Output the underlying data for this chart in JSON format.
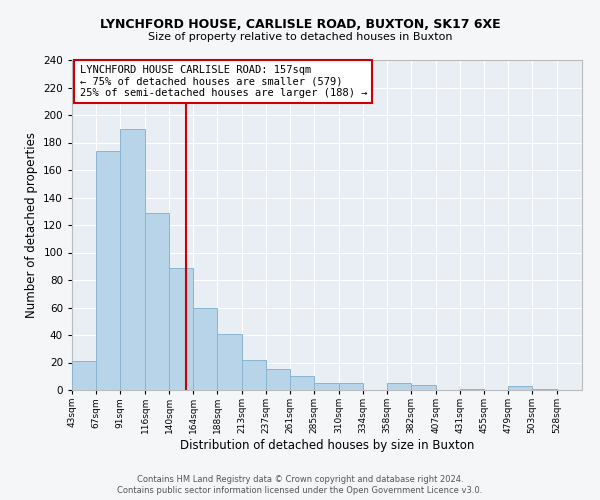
{
  "title1": "LYNCHFORD HOUSE, CARLISLE ROAD, BUXTON, SK17 6XE",
  "title2": "Size of property relative to detached houses in Buxton",
  "xlabel": "Distribution of detached houses by size in Buxton",
  "ylabel": "Number of detached properties",
  "bar_left_edges": [
    43,
    67,
    91,
    116,
    140,
    164,
    188,
    213,
    237,
    261,
    285,
    310,
    334,
    358,
    382,
    407,
    431,
    455,
    479,
    503
  ],
  "bar_heights": [
    21,
    174,
    190,
    129,
    89,
    60,
    41,
    22,
    15,
    10,
    5,
    5,
    0,
    5,
    4,
    0,
    1,
    0,
    3,
    1
  ],
  "bar_widths": [
    24,
    24,
    25,
    24,
    24,
    24,
    25,
    24,
    24,
    24,
    25,
    24,
    24,
    24,
    25,
    24,
    24,
    24,
    24,
    25
  ],
  "tick_labels": [
    "43sqm",
    "67sqm",
    "91sqm",
    "116sqm",
    "140sqm",
    "164sqm",
    "188sqm",
    "213sqm",
    "237sqm",
    "261sqm",
    "285sqm",
    "310sqm",
    "334sqm",
    "358sqm",
    "382sqm",
    "407sqm",
    "431sqm",
    "455sqm",
    "479sqm",
    "503sqm",
    "528sqm"
  ],
  "tick_positions": [
    43,
    67,
    91,
    116,
    140,
    164,
    188,
    213,
    237,
    261,
    285,
    310,
    334,
    358,
    382,
    407,
    431,
    455,
    479,
    503,
    528
  ],
  "bar_color": "#b8d4e8",
  "bar_edge_color": "#8ab4d0",
  "vline_x": 157,
  "vline_color": "#cc0000",
  "ylim": [
    0,
    240
  ],
  "xlim": [
    43,
    553
  ],
  "annotation_title": "LYNCHFORD HOUSE CARLISLE ROAD: 157sqm",
  "annotation_line1": "← 75% of detached houses are smaller (579)",
  "annotation_line2": "25% of semi-detached houses are larger (188) →",
  "footer1": "Contains HM Land Registry data © Crown copyright and database right 2024.",
  "footer2": "Contains public sector information licensed under the Open Government Licence v3.0.",
  "background_color": "#f4f6f8",
  "plot_background": "#e8eef4"
}
